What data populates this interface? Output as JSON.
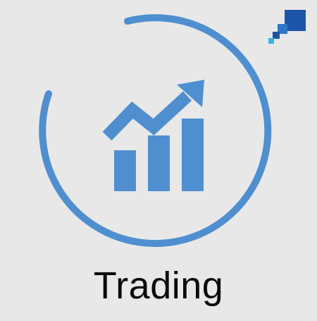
{
  "tile": {
    "title": "Trading",
    "accent_color": "#4f8fd0",
    "corner_logo_colors": [
      "#1b54a8",
      "#2f77c9",
      "#35b6e6"
    ],
    "icon": "rising-bar-chart-icon"
  }
}
